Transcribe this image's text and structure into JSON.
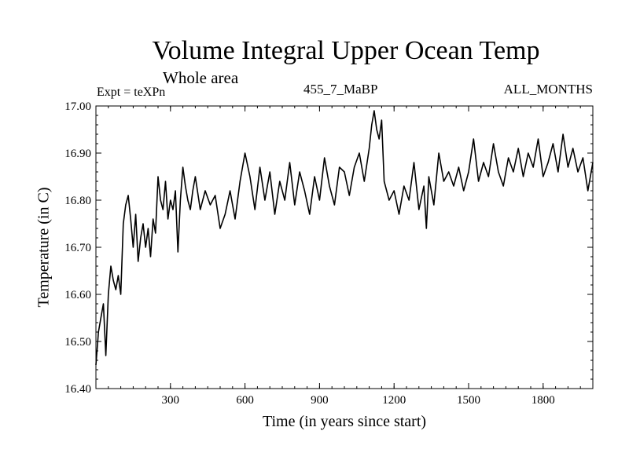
{
  "chart_data": {
    "type": "line",
    "title": "Volume Integral Upper Ocean Temp",
    "subtitle": "Whole area",
    "annotations": {
      "left": "Expt = teXPn",
      "center": "455_7_MaBP",
      "right": "ALL_MONTHS"
    },
    "xlabel": "Time (in years since start)",
    "ylabel": "Temperature (in C)",
    "xlim": [
      0,
      2000
    ],
    "ylim": [
      16.4,
      17.0
    ],
    "xticks": [
      300,
      600,
      900,
      1200,
      1500,
      1800
    ],
    "xtick_labels": [
      "300",
      "600",
      "900",
      "1200",
      "1500",
      "1800"
    ],
    "yticks": [
      16.4,
      16.5,
      16.6,
      16.7,
      16.8,
      16.9,
      17.0
    ],
    "ytick_labels": [
      "16.40",
      "16.50",
      "16.60",
      "16.70",
      "16.80",
      "16.90",
      "17.00"
    ],
    "grid": false,
    "series": [
      {
        "name": "Volume Integral Upper Ocean Temp",
        "color": "#000000",
        "x": [
          0,
          10,
          20,
          30,
          40,
          50,
          60,
          70,
          80,
          90,
          100,
          110,
          120,
          130,
          140,
          150,
          160,
          170,
          180,
          190,
          200,
          210,
          220,
          230,
          240,
          250,
          260,
          270,
          280,
          290,
          300,
          310,
          320,
          330,
          340,
          350,
          360,
          370,
          380,
          390,
          400,
          420,
          440,
          460,
          480,
          500,
          520,
          540,
          560,
          580,
          600,
          620,
          640,
          660,
          680,
          700,
          720,
          740,
          760,
          780,
          800,
          820,
          840,
          860,
          880,
          900,
          920,
          940,
          960,
          980,
          1000,
          1020,
          1040,
          1060,
          1080,
          1100,
          1110,
          1120,
          1130,
          1140,
          1150,
          1160,
          1180,
          1200,
          1220,
          1240,
          1260,
          1280,
          1300,
          1320,
          1330,
          1340,
          1360,
          1380,
          1400,
          1420,
          1440,
          1460,
          1480,
          1500,
          1520,
          1540,
          1560,
          1580,
          1600,
          1620,
          1640,
          1660,
          1680,
          1700,
          1720,
          1740,
          1760,
          1780,
          1800,
          1820,
          1840,
          1860,
          1880,
          1900,
          1920,
          1940,
          1960,
          1980,
          2000
        ],
        "values": [
          16.45,
          16.52,
          16.55,
          16.58,
          16.47,
          16.6,
          16.66,
          16.63,
          16.61,
          16.64,
          16.6,
          16.75,
          16.79,
          16.81,
          16.76,
          16.7,
          16.77,
          16.67,
          16.72,
          16.75,
          16.7,
          16.74,
          16.68,
          16.76,
          16.73,
          16.85,
          16.8,
          16.78,
          16.84,
          16.76,
          16.8,
          16.78,
          16.82,
          16.69,
          16.8,
          16.87,
          16.83,
          16.8,
          16.78,
          16.82,
          16.85,
          16.78,
          16.82,
          16.79,
          16.81,
          16.74,
          16.77,
          16.82,
          16.76,
          16.84,
          16.9,
          16.85,
          16.78,
          16.87,
          16.8,
          16.86,
          16.77,
          16.84,
          16.8,
          16.88,
          16.79,
          16.86,
          16.82,
          16.77,
          16.85,
          16.8,
          16.89,
          16.83,
          16.79,
          16.87,
          16.86,
          16.81,
          16.87,
          16.9,
          16.84,
          16.91,
          16.96,
          16.99,
          16.95,
          16.93,
          16.97,
          16.84,
          16.8,
          16.82,
          16.77,
          16.83,
          16.8,
          16.88,
          16.78,
          16.83,
          16.74,
          16.85,
          16.79,
          16.9,
          16.84,
          16.86,
          16.83,
          16.87,
          16.82,
          16.86,
          16.93,
          16.84,
          16.88,
          16.85,
          16.92,
          16.86,
          16.83,
          16.89,
          16.86,
          16.91,
          16.85,
          16.9,
          16.87,
          16.93,
          16.85,
          16.88,
          16.92,
          16.86,
          16.94,
          16.87,
          16.91,
          16.86,
          16.89,
          16.82,
          16.88
        ]
      }
    ]
  }
}
